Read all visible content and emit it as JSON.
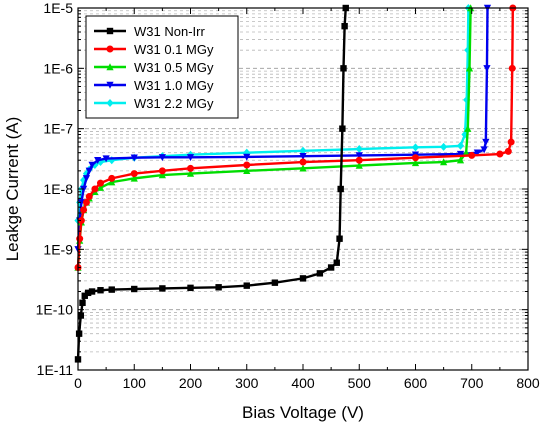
{
  "chart_data": {
    "type": "line",
    "xlabel": "Bias Voltage (V)",
    "ylabel": "Leakge Current (A)",
    "xlim": [
      0,
      800
    ],
    "ylim": [
      1e-11,
      1e-05
    ],
    "yscale": "log",
    "grid": "horizontal dashed, major and minor",
    "legend_position": "top-left",
    "x_ticks": [
      0,
      100,
      200,
      300,
      400,
      500,
      600,
      700,
      800
    ],
    "x_tick_labels": [
      "0",
      "100",
      "200",
      "300",
      "400",
      "500",
      "600",
      "700",
      "800"
    ],
    "y_ticks": [
      1e-11,
      1e-10,
      1e-09,
      1e-08,
      1e-07,
      1e-06,
      1e-05
    ],
    "y_tick_labels": [
      "1E-11",
      "1E-10",
      "1E-9",
      "1E-8",
      "1E-7",
      "1E-6",
      "1E-5"
    ],
    "series": [
      {
        "name": "W31 Non-Irr",
        "color": "#000000",
        "marker": "square",
        "x": [
          0,
          2,
          5,
          8,
          12,
          18,
          25,
          40,
          60,
          100,
          150,
          200,
          250,
          300,
          350,
          400,
          430,
          450,
          460,
          465,
          467,
          470,
          472,
          474,
          476
        ],
        "y": [
          1.5e-11,
          4e-11,
          8e-11,
          1.3e-10,
          1.7e-10,
          1.9e-10,
          2e-10,
          2.1e-10,
          2.15e-10,
          2.2e-10,
          2.25e-10,
          2.3e-10,
          2.35e-10,
          2.5e-10,
          2.8e-10,
          3.3e-10,
          4e-10,
          5e-10,
          6e-10,
          1.5e-09,
          1e-08,
          1e-07,
          1e-06,
          5e-06,
          1e-05
        ]
      },
      {
        "name": "W31 0.1 MGy",
        "color": "#ff0000",
        "marker": "circle",
        "x": [
          0,
          3,
          6,
          10,
          15,
          20,
          30,
          40,
          60,
          100,
          150,
          200,
          300,
          400,
          500,
          600,
          700,
          750,
          765,
          770,
          772,
          773
        ],
        "y": [
          5e-10,
          1.5e-09,
          3e-09,
          4.5e-09,
          6e-09,
          7.5e-09,
          1e-08,
          1.25e-08,
          1.5e-08,
          1.8e-08,
          2e-08,
          2.2e-08,
          2.5e-08,
          2.8e-08,
          3e-08,
          3.3e-08,
          3.6e-08,
          3.8e-08,
          4.2e-08,
          6e-08,
          1e-06,
          1e-05
        ]
      },
      {
        "name": "W31 0.5 MGy",
        "color": "#00dd00",
        "marker": "triangle-up",
        "x": [
          0,
          3,
          6,
          10,
          15,
          20,
          30,
          40,
          60,
          100,
          150,
          200,
          300,
          400,
          500,
          600,
          650,
          680,
          690,
          693,
          696,
          698
        ],
        "y": [
          5e-10,
          1.4e-09,
          2.8e-09,
          4.5e-09,
          6e-09,
          7e-09,
          9e-09,
          1.05e-08,
          1.3e-08,
          1.5e-08,
          1.7e-08,
          1.8e-08,
          2e-08,
          2.2e-08,
          2.45e-08,
          2.7e-08,
          2.8e-08,
          3e-08,
          4e-08,
          1e-07,
          1e-06,
          1e-05
        ]
      },
      {
        "name": "W31 1.0 MGy",
        "color": "#0000ee",
        "marker": "triangle-down",
        "x": [
          0,
          3,
          6,
          10,
          15,
          20,
          25,
          35,
          50,
          100,
          150,
          200,
          300,
          400,
          500,
          600,
          680,
          710,
          722,
          725,
          727,
          728
        ],
        "y": [
          1e-09,
          3e-09,
          6e-09,
          1e-08,
          1.5e-08,
          2e-08,
          2.5e-08,
          3e-08,
          3.2e-08,
          3.3e-08,
          3.35e-08,
          3.35e-08,
          3.4e-08,
          3.5e-08,
          3.6e-08,
          3.7e-08,
          3.8e-08,
          4e-08,
          4.5e-08,
          6e-08,
          1e-06,
          1e-05
        ]
      },
      {
        "name": "W31 2.2 MGy",
        "color": "#00eeee",
        "marker": "diamond",
        "x": [
          0,
          3,
          6,
          10,
          15,
          20,
          30,
          40,
          60,
          100,
          150,
          200,
          300,
          400,
          500,
          600,
          650,
          680,
          688,
          691,
          693,
          694
        ],
        "y": [
          3e-09,
          6e-09,
          1e-08,
          1.4e-08,
          1.8e-08,
          2.1e-08,
          2.5e-08,
          2.8e-08,
          3e-08,
          3.3e-08,
          3.5e-08,
          3.7e-08,
          4e-08,
          4.3e-08,
          4.6e-08,
          4.9e-08,
          5e-08,
          5.2e-08,
          8e-08,
          3e-07,
          2e-06,
          1e-05
        ]
      }
    ]
  }
}
